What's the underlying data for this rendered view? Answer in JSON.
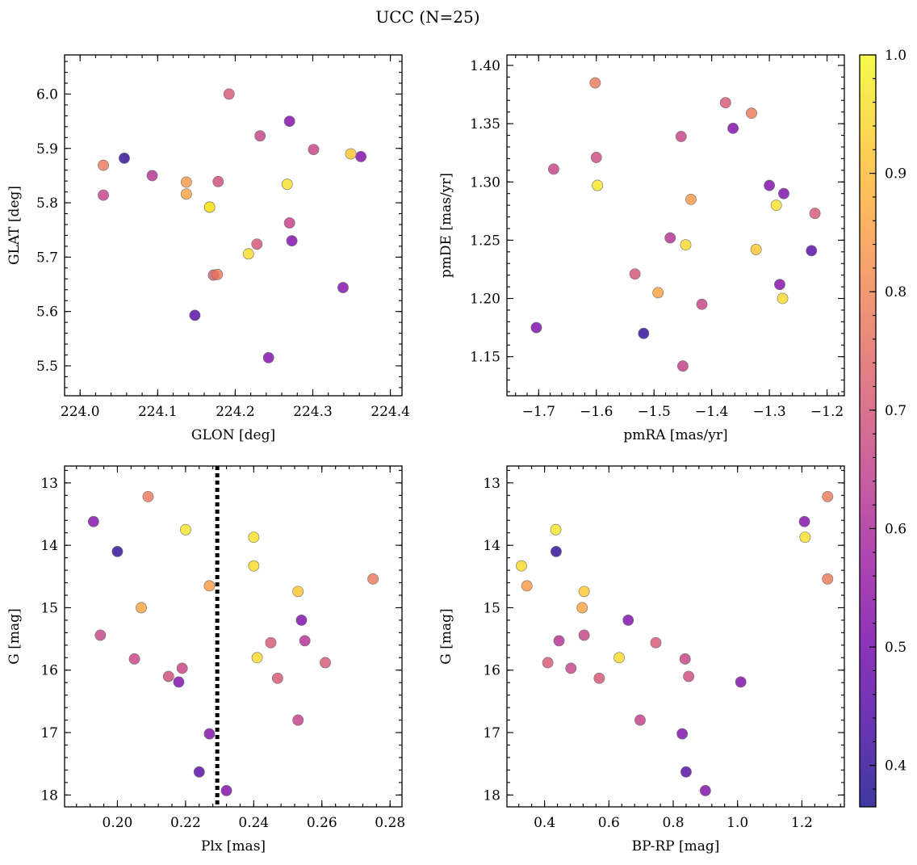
{
  "figure": {
    "title": "UCC (N=25)"
  },
  "colorbar": {
    "range": [
      0.365,
      1.0
    ],
    "ticks": [
      0.4,
      0.5,
      0.6,
      0.7,
      0.8,
      0.9,
      1.0
    ],
    "tick_labels": [
      "0.4",
      "0.5",
      "0.6",
      "0.7",
      "0.8",
      "0.9",
      "1.0"
    ],
    "colormap": "plasma",
    "stops": [
      "#0d0887",
      "#46039f",
      "#7201a8",
      "#9c179e",
      "#bd3786",
      "#d8576b",
      "#ed7953",
      "#fb9f3a",
      "#fdca26",
      "#f0f921"
    ],
    "alpha": 0.8
  },
  "stars": [
    {
      "glon": 224.192,
      "glat": 6.0,
      "pmra": -1.376,
      "pmde": 1.368,
      "plx": 0.245,
      "g": 15.56,
      "bprp": 0.746,
      "p": 0.71
    },
    {
      "glon": 224.27,
      "glat": 5.95,
      "pmra": -1.363,
      "pmde": 1.346,
      "plx": 0.254,
      "g": 15.2,
      "bprp": 0.66,
      "p": 0.52
    },
    {
      "glon": 224.232,
      "glat": 5.923,
      "pmra": -1.453,
      "pmde": 1.339,
      "plx": 0.205,
      "g": 15.82,
      "bprp": 0.837,
      "p": 0.66
    },
    {
      "glon": 224.301,
      "glat": 5.898,
      "pmra": -1.674,
      "pmde": 1.311,
      "plx": 0.195,
      "g": 15.44,
      "bprp": 0.523,
      "p": 0.66
    },
    {
      "glon": 224.349,
      "glat": 5.89,
      "pmra": -1.323,
      "pmde": 1.242,
      "plx": 0.253,
      "g": 14.74,
      "bprp": 0.523,
      "p": 0.92
    },
    {
      "glon": 224.362,
      "glat": 5.885,
      "pmra": -1.275,
      "pmde": 1.29,
      "plx": 0.218,
      "g": 16.19,
      "bprp": 1.01,
      "p": 0.52
    },
    {
      "glon": 224.057,
      "glat": 5.882,
      "pmra": -1.518,
      "pmde": 1.17,
      "plx": 0.2,
      "g": 14.1,
      "bprp": 0.436,
      "p": 0.4
    },
    {
      "glon": 224.03,
      "glat": 5.869,
      "pmra": -1.602,
      "pmde": 1.385,
      "plx": 0.209,
      "g": 13.22,
      "bprp": 1.28,
      "p": 0.78
    },
    {
      "glon": 224.093,
      "glat": 5.85,
      "pmra": -1.472,
      "pmde": 1.252,
      "plx": 0.255,
      "g": 15.53,
      "bprp": 0.445,
      "p": 0.62
    },
    {
      "glon": 224.137,
      "glat": 5.838,
      "pmra": -1.436,
      "pmde": 1.285,
      "plx": 0.227,
      "g": 14.65,
      "bprp": 0.345,
      "p": 0.84
    },
    {
      "glon": 224.178,
      "glat": 5.839,
      "pmra": -1.6,
      "pmde": 1.321,
      "plx": 0.215,
      "g": 16.1,
      "bprp": 0.848,
      "p": 0.68
    },
    {
      "glon": 224.267,
      "glat": 5.834,
      "pmra": -1.288,
      "pmde": 1.28,
      "plx": 0.24,
      "g": 13.87,
      "bprp": 1.21,
      "p": 0.96
    },
    {
      "glon": 224.137,
      "glat": 5.816,
      "pmra": -1.493,
      "pmde": 1.205,
      "plx": 0.207,
      "g": 15.0,
      "bprp": 0.517,
      "p": 0.86
    },
    {
      "glon": 224.03,
      "glat": 5.814,
      "pmra": -1.417,
      "pmde": 1.195,
      "plx": 0.219,
      "g": 15.97,
      "bprp": 0.482,
      "p": 0.66
    },
    {
      "glon": 224.167,
      "glat": 5.792,
      "pmra": -1.598,
      "pmde": 1.297,
      "plx": 0.22,
      "g": 13.75,
      "bprp": 0.435,
      "p": 0.97
    },
    {
      "glon": 224.27,
      "glat": 5.763,
      "pmra": -1.45,
      "pmde": 1.142,
      "plx": 0.253,
      "g": 16.8,
      "bprp": 0.697,
      "p": 0.65
    },
    {
      "glon": 224.273,
      "glat": 5.73,
      "pmra": -1.3,
      "pmde": 1.297,
      "plx": 0.227,
      "g": 17.02,
      "bprp": 0.828,
      "p": 0.52
    },
    {
      "glon": 224.228,
      "glat": 5.724,
      "pmra": -1.533,
      "pmde": 1.221,
      "plx": 0.247,
      "g": 16.13,
      "bprp": 0.57,
      "p": 0.7
    },
    {
      "glon": 224.217,
      "glat": 5.706,
      "pmra": -1.277,
      "pmde": 1.2,
      "plx": 0.24,
      "g": 14.33,
      "bprp": 0.328,
      "p": 0.95
    },
    {
      "glon": 224.177,
      "glat": 5.668,
      "pmra": -1.331,
      "pmde": 1.359,
      "plx": 0.275,
      "g": 14.54,
      "bprp": 1.28,
      "p": 0.78
    },
    {
      "glon": 224.172,
      "glat": 5.667,
      "pmra": -1.221,
      "pmde": 1.273,
      "plx": 0.261,
      "g": 15.88,
      "bprp": 0.41,
      "p": 0.71
    },
    {
      "glon": 224.339,
      "glat": 5.644,
      "pmra": -1.282,
      "pmde": 1.212,
      "plx": 0.193,
      "g": 13.62,
      "bprp": 1.208,
      "p": 0.53
    },
    {
      "glon": 224.148,
      "glat": 5.593,
      "pmra": -1.227,
      "pmde": 1.241,
      "plx": 0.224,
      "g": 17.63,
      "bprp": 0.84,
      "p": 0.45
    },
    {
      "glon": 224.243,
      "glat": 5.515,
      "pmra": -1.704,
      "pmde": 1.175,
      "plx": 0.232,
      "g": 17.93,
      "bprp": 0.9,
      "p": 0.52
    },
    {
      "glon": 224.167,
      "glat": 5.792,
      "pmra": -1.445,
      "pmde": 1.246,
      "plx": 0.241,
      "g": 15.8,
      "bprp": 0.632,
      "p": 0.95
    }
  ],
  "panels": [
    {
      "name": "glon-glat",
      "xkey": "glon",
      "ykey": "glat",
      "xlabel": "GLON [deg]",
      "ylabel": "GLAT [deg]",
      "xlim": [
        223.98,
        224.415
      ],
      "ylim": [
        5.445,
        6.072
      ],
      "yinvert": false,
      "xticks": [
        224.0,
        224.1,
        224.2,
        224.3,
        224.4
      ],
      "xtick_labels": [
        "224.0",
        "224.1",
        "224.2",
        "224.3",
        "224.4"
      ],
      "yticks": [
        5.5,
        5.6,
        5.7,
        5.8,
        5.9,
        6.0
      ],
      "ytick_labels": [
        "5.5",
        "5.6",
        "5.7",
        "5.8",
        "5.9",
        "6.0"
      ],
      "xminor": 0.02,
      "yminor": 0.02
    },
    {
      "name": "pm",
      "xkey": "pmra",
      "ykey": "pmde",
      "xlabel": "pmRA [mas/yr]",
      "ylabel": "pmDE [mas/yr]",
      "xlim": [
        -1.755,
        -1.17
      ],
      "ylim": [
        1.1165,
        1.409
      ],
      "yinvert": false,
      "xticks": [
        -1.7,
        -1.6,
        -1.5,
        -1.4,
        -1.3,
        -1.2
      ],
      "xtick_labels": [
        "−1.7",
        "−1.6",
        "−1.5",
        "−1.4",
        "−1.3",
        "−1.2"
      ],
      "yticks": [
        1.15,
        1.2,
        1.25,
        1.3,
        1.35,
        1.4
      ],
      "ytick_labels": [
        "1.15",
        "1.20",
        "1.25",
        "1.30",
        "1.35",
        "1.40"
      ],
      "xminor": 0.02,
      "yminor": 0.01
    },
    {
      "name": "plx-g",
      "xkey": "plx",
      "ykey": "g",
      "xlabel": "Plx [mas]",
      "ylabel": "G [mag]",
      "xlim": [
        0.1845,
        0.2835
      ],
      "ylim": [
        18.19,
        12.73
      ],
      "yinvert": true,
      "xticks": [
        0.2,
        0.22,
        0.24,
        0.26,
        0.28
      ],
      "xtick_labels": [
        "0.20",
        "0.22",
        "0.24",
        "0.26",
        "0.28"
      ],
      "yticks": [
        13,
        14,
        15,
        16,
        17,
        18
      ],
      "ytick_labels": [
        "13",
        "14",
        "15",
        "16",
        "17",
        "18"
      ],
      "xminor": 0.004,
      "yminor": 0.2,
      "vline": 0.2293
    },
    {
      "name": "cmd",
      "xkey": "bprp",
      "ykey": "g",
      "xlabel": "BP-RP [mag]",
      "ylabel": "G [mag]",
      "xlim": [
        0.283,
        1.332
      ],
      "ylim": [
        18.19,
        12.73
      ],
      "yinvert": true,
      "xticks": [
        0.4,
        0.6,
        0.8,
        1.0,
        1.2
      ],
      "xtick_labels": [
        "0.4",
        "0.6",
        "0.8",
        "1.0",
        "1.2"
      ],
      "yticks": [
        13,
        14,
        15,
        16,
        17,
        18
      ],
      "ytick_labels": [
        "13",
        "14",
        "15",
        "16",
        "17",
        "18"
      ],
      "xminor": 0.04,
      "yminor": 0.2
    }
  ],
  "chart_data": [
    {
      "type": "scatter",
      "xlabel": "GLON [deg]",
      "ylabel": "GLAT [deg]",
      "x_key": "glon",
      "y_key": "glat",
      "xlim": [
        223.98,
        224.415
      ],
      "ylim": [
        5.445,
        6.072
      ],
      "color_key": "p"
    },
    {
      "type": "scatter",
      "xlabel": "pmRA [mas/yr]",
      "ylabel": "pmDE [mas/yr]",
      "x_key": "pmra",
      "y_key": "pmde",
      "xlim": [
        -1.755,
        -1.17
      ],
      "ylim": [
        1.1165,
        1.409
      ],
      "color_key": "p"
    },
    {
      "type": "scatter",
      "xlabel": "Plx [mas]",
      "ylabel": "G [mag]",
      "x_key": "plx",
      "y_key": "g",
      "xlim": [
        0.1845,
        0.2835
      ],
      "ylim": [
        18.19,
        12.73
      ],
      "y_inverted": true,
      "vline_x": 0.2293,
      "color_key": "p"
    },
    {
      "type": "scatter",
      "xlabel": "BP-RP [mag]",
      "ylabel": "G [mag]",
      "x_key": "bprp",
      "y_key": "g",
      "xlim": [
        0.283,
        1.332
      ],
      "ylim": [
        18.19,
        12.73
      ],
      "y_inverted": true,
      "color_key": "p"
    }
  ]
}
